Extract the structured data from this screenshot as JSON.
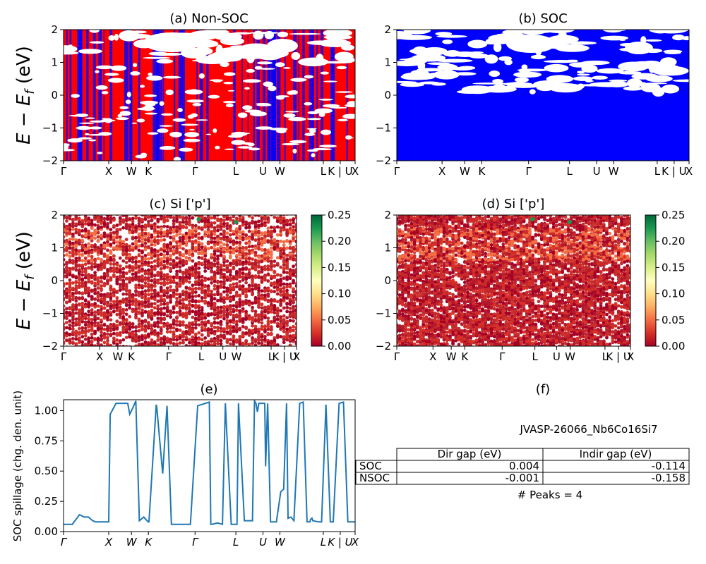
{
  "kpoint_labels": [
    "Γ",
    "X",
    "W",
    "K",
    "Γ",
    "L",
    "U",
    "W",
    "L",
    "K | U",
    "X"
  ],
  "kpoint_positions": [
    0,
    0.155,
    0.233,
    0.291,
    0.451,
    0.591,
    0.684,
    0.742,
    0.891,
    0.949,
    1.0
  ],
  "colorbar_ticks": [
    "0.00",
    "0.05",
    "0.10",
    "0.15",
    "0.20",
    "0.25"
  ],
  "colors": {
    "nonsoc_up": "#ff0000",
    "nonsoc_down": "#0000ff",
    "soc": "#0000ff",
    "spillage": "#1f77b4",
    "colormap": "RdYlGn"
  },
  "chart_data": [
    {
      "id": "a",
      "type": "line",
      "title": "(a) Non-SOC",
      "ylabel": "E − E_f (eV)",
      "ylim": [
        -2,
        2
      ],
      "yticks": [
        "−2",
        "−1",
        "0",
        "1",
        "2"
      ],
      "series": [
        {
          "name": "spin up",
          "color": "#ff0000"
        },
        {
          "name": "spin down",
          "color": "#0000ff"
        }
      ]
    },
    {
      "id": "b",
      "type": "line",
      "title": "(b) SOC",
      "ylim": [
        -2,
        2
      ],
      "yticks": [
        "−2",
        "−1",
        "0",
        "1",
        "2"
      ],
      "series": [
        {
          "name": "bands",
          "color": "#0000ff"
        }
      ]
    },
    {
      "id": "c",
      "type": "scatter",
      "title": "(c)  Si ['p']",
      "ylabel": "E − E_f (eV)",
      "ylim": [
        -2,
        2
      ],
      "yticks": [
        "−2",
        "−1",
        "0",
        "1",
        "2"
      ],
      "colorbar_range": [
        0,
        0.25
      ]
    },
    {
      "id": "d",
      "type": "scatter",
      "title": "(d) Si ['p']",
      "ylim": [
        -2,
        2
      ],
      "yticks": [
        "−2",
        "−1",
        "0",
        "1",
        "2"
      ],
      "colorbar_range": [
        0,
        0.25
      ]
    },
    {
      "id": "e",
      "type": "line",
      "title": "(e)",
      "ylabel": "SOC spillage (chg. den. unit)",
      "ylim": [
        0,
        1.09
      ],
      "yticks": [
        "0.00",
        "0.25",
        "0.50",
        "0.75",
        "1.00"
      ],
      "series": [
        {
          "name": "spillage",
          "x": [
            0,
            0.03,
            0.055,
            0.07,
            0.085,
            0.1,
            0.11,
            0.13,
            0.155,
            0.16,
            0.18,
            0.2,
            0.22,
            0.227,
            0.237,
            0.248,
            0.26,
            0.275,
            0.29,
            0.293,
            0.318,
            0.32,
            0.34,
            0.355,
            0.37,
            0.375,
            0.395,
            0.4,
            0.42,
            0.435,
            0.46,
            0.5,
            0.505,
            0.51,
            0.525,
            0.53,
            0.545,
            0.555,
            0.575,
            0.595,
            0.6,
            0.62,
            0.633,
            0.648,
            0.655,
            0.66,
            0.665,
            0.67,
            0.69,
            0.693,
            0.7,
            0.71,
            0.73,
            0.745,
            0.755,
            0.765,
            0.77,
            0.78,
            0.79,
            0.81,
            0.822,
            0.835,
            0.845,
            0.847,
            0.852,
            0.855,
            0.875,
            0.885,
            0.9,
            0.915,
            0.925,
            0.945,
            0.96,
            0.975,
            1.0
          ],
          "y": [
            0.06,
            0.06,
            0.14,
            0.12,
            0.12,
            0.09,
            0.08,
            0.08,
            0.08,
            0.97,
            1.06,
            1.06,
            1.06,
            0.97,
            1.02,
            1.08,
            0.09,
            0.12,
            0.08,
            0.08,
            1.05,
            1.02,
            0.48,
            1.04,
            0.06,
            0.06,
            0.06,
            0.06,
            0.06,
            0.06,
            1.04,
            1.07,
            0.06,
            0.06,
            0.07,
            0.07,
            0.06,
            1.06,
            0.06,
            0.06,
            1.06,
            0.09,
            0.09,
            0.09,
            1.08,
            1.06,
            0.99,
            1.06,
            1.06,
            0.54,
            1.06,
            0.08,
            0.08,
            0.33,
            0.35,
            1.06,
            0.11,
            0.12,
            0.09,
            1.06,
            1.07,
            0.08,
            0.08,
            0.1,
            0.11,
            0.09,
            0.08,
            0.08,
            1.05,
            0.08,
            0.08,
            1.06,
            1.07,
            0.08,
            0.08
          ]
        }
      ]
    }
  ],
  "panel_f": {
    "title": "(f)",
    "material": "JVASP-26066_Nb6Co16Si7",
    "col_labels": [
      "Dir gap (eV)",
      "Indir gap (eV)"
    ],
    "rows": [
      {
        "label": "SOC",
        "dir": "0.004",
        "indir": "-0.114"
      },
      {
        "label": "NSOC",
        "dir": "-0.001",
        "indir": "-0.158"
      }
    ],
    "peaks": "# Peaks = 4"
  }
}
